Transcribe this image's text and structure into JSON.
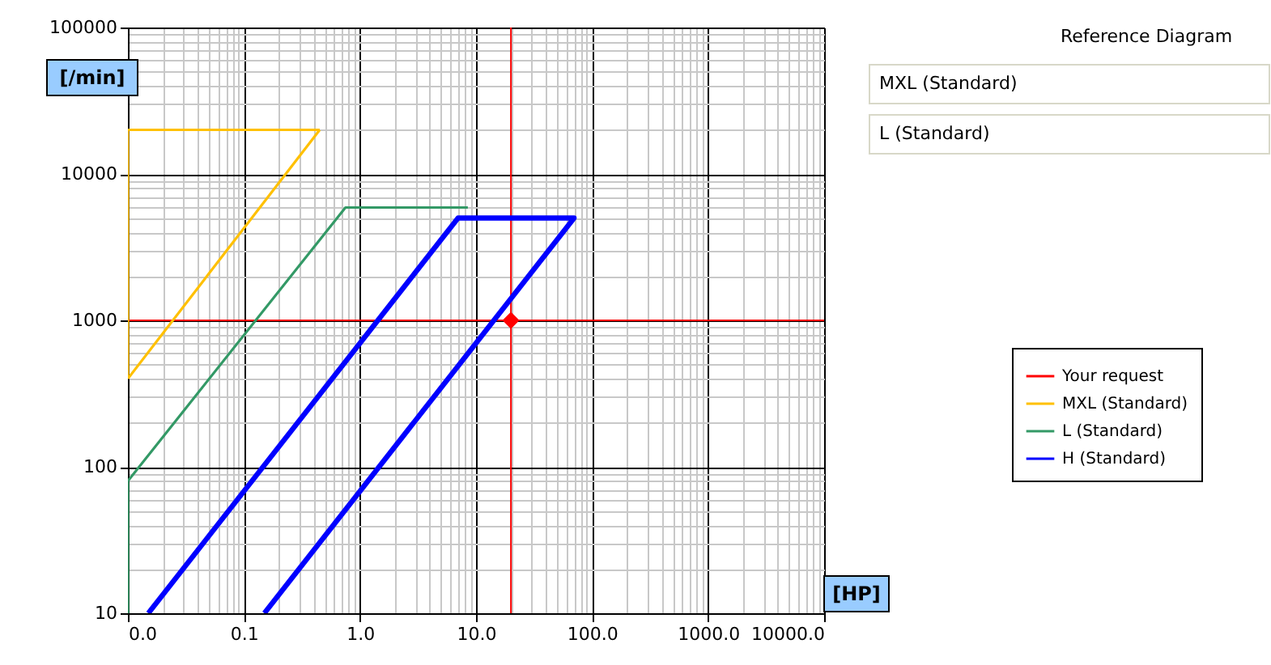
{
  "chart_data": {
    "type": "line",
    "xlabel": "[HP]",
    "ylabel": "[/min]",
    "log": "xy",
    "grid": true,
    "legend": "right",
    "line_style": "solid",
    "xlim": [
      0.01,
      10000
    ],
    "ylim": [
      10,
      100000
    ],
    "xticks": [
      {
        "value": 0.01,
        "label": "0.0"
      },
      0.1,
      {
        "value": 1,
        "label": "1.0"
      },
      {
        "value": 10,
        "label": "10.0"
      },
      {
        "value": 100,
        "label": "100.0"
      },
      {
        "value": 1000,
        "label": "1000.0"
      },
      {
        "value": 10000,
        "label": "10000.0"
      }
    ],
    "yticks": [
      10,
      100,
      1000,
      10000,
      100000
    ],
    "series": [
      {
        "name": "Your request",
        "type": "scatter",
        "marker": "diamond",
        "color": "#ff0000",
        "x": [
          20
        ],
        "values": [
          1000
        ]
      },
      {
        "name": "MXL (Standard)",
        "color": "#ffc000",
        "x": [
          0.01,
          0.45
        ],
        "values": [
          400,
          20000
        ]
      },
      {
        "color": "#ffc000",
        "x": [
          0.01,
          0.01,
          0.45
        ],
        "values": [
          400,
          20000,
          20000
        ]
      },
      {
        "name": "L (Standard)",
        "color": "#339966",
        "x": [
          0.01,
          0.01,
          0.75,
          8.5
        ],
        "values": [
          10,
          80,
          5900,
          5900
        ]
      },
      {
        "name": "H (Standard)",
        "color": "#0000ff",
        "x": [
          0.015,
          7,
          70,
          0.15
        ],
        "values": [
          10,
          5000,
          5000,
          10
        ]
      }
    ],
    "ref_lines": [
      {
        "axis": "x",
        "value": 20,
        "color": "#ff0000"
      },
      {
        "axis": "y",
        "value": 1000,
        "color": "#ff0000"
      }
    ],
    "annotations": [
      "Reference Diagram",
      "MXL (Standard)",
      "L (Standard)"
    ]
  }
}
